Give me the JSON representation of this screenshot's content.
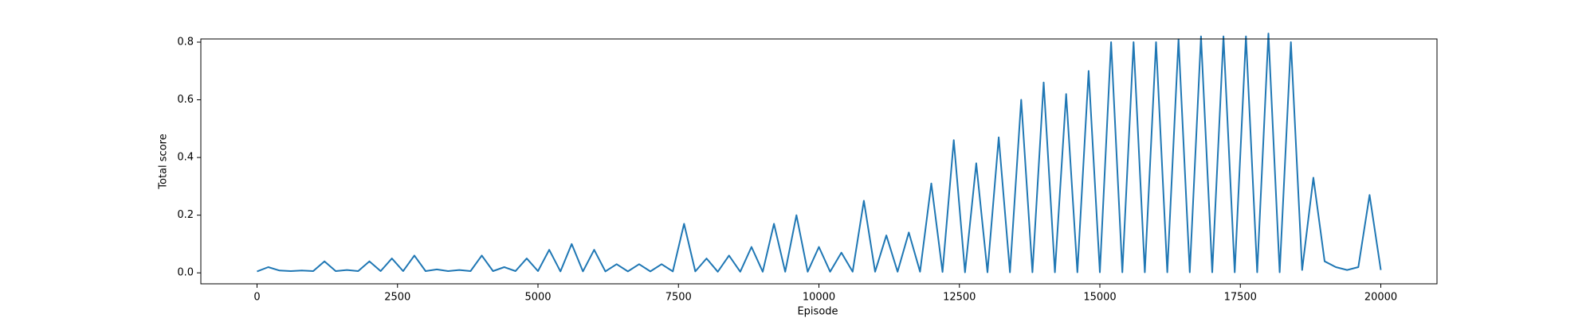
{
  "chart_data": {
    "type": "line",
    "xlabel": "Episode",
    "ylabel": "Total score",
    "x": [
      0,
      200,
      400,
      600,
      800,
      1000,
      1200,
      1400,
      1600,
      1800,
      2000,
      2200,
      2400,
      2600,
      2800,
      3000,
      3200,
      3400,
      3600,
      3800,
      4000,
      4200,
      4400,
      4600,
      4800,
      5000,
      5200,
      5400,
      5600,
      5800,
      6000,
      6200,
      6400,
      6600,
      6800,
      7000,
      7200,
      7400,
      7600,
      7800,
      8000,
      8200,
      8400,
      8600,
      8800,
      9000,
      9200,
      9400,
      9600,
      9800,
      10000,
      10200,
      10400,
      10600,
      10800,
      11000,
      11200,
      11400,
      11600,
      11800,
      12000,
      12200,
      12400,
      12600,
      12800,
      13000,
      13200,
      13400,
      13600,
      13800,
      14000,
      14200,
      14400,
      14600,
      14800,
      15000,
      15200,
      15400,
      15600,
      15800,
      16000,
      16200,
      16400,
      16600,
      16800,
      17000,
      17200,
      17400,
      17600,
      17800,
      18000,
      18200,
      18400,
      18600,
      18800,
      19000,
      19200,
      19400,
      19600,
      19800,
      20000
    ],
    "series": [
      {
        "color": "#1f77b4",
        "values": [
          0.005,
          0.02,
          0.008,
          0.006,
          0.008,
          0.006,
          0.04,
          0.006,
          0.01,
          0.006,
          0.04,
          0.006,
          0.05,
          0.006,
          0.06,
          0.006,
          0.012,
          0.006,
          0.01,
          0.006,
          0.06,
          0.006,
          0.02,
          0.006,
          0.05,
          0.006,
          0.08,
          0.005,
          0.1,
          0.005,
          0.08,
          0.005,
          0.03,
          0.005,
          0.03,
          0.005,
          0.03,
          0.005,
          0.17,
          0.005,
          0.05,
          0.004,
          0.06,
          0.004,
          0.09,
          0.004,
          0.17,
          0.004,
          0.2,
          0.004,
          0.09,
          0.004,
          0.07,
          0.004,
          0.25,
          0.004,
          0.13,
          0.004,
          0.14,
          0.004,
          0.31,
          0.003,
          0.46,
          0.002,
          0.38,
          0.002,
          0.47,
          0.002,
          0.6,
          0.002,
          0.66,
          0.002,
          0.62,
          0.002,
          0.7,
          0.002,
          0.8,
          0.002,
          0.8,
          0.002,
          0.8,
          0.002,
          0.81,
          0.002,
          0.82,
          0.002,
          0.82,
          0.002,
          0.82,
          0.002,
          0.83,
          0.002,
          0.8,
          0.01,
          0.33,
          0.04,
          0.02,
          0.01,
          0.02,
          0.27,
          0.01
        ]
      }
    ],
    "xlim": [
      -1000,
      21000
    ],
    "ylim": [
      -0.038,
      0.811
    ],
    "xticks": [
      0,
      2500,
      5000,
      7500,
      10000,
      12500,
      15000,
      17500,
      20000
    ],
    "yticks": [
      {
        "value": 0,
        "label": "0.0"
      },
      0.2,
      0.4,
      0.6,
      0.8
    ]
  }
}
